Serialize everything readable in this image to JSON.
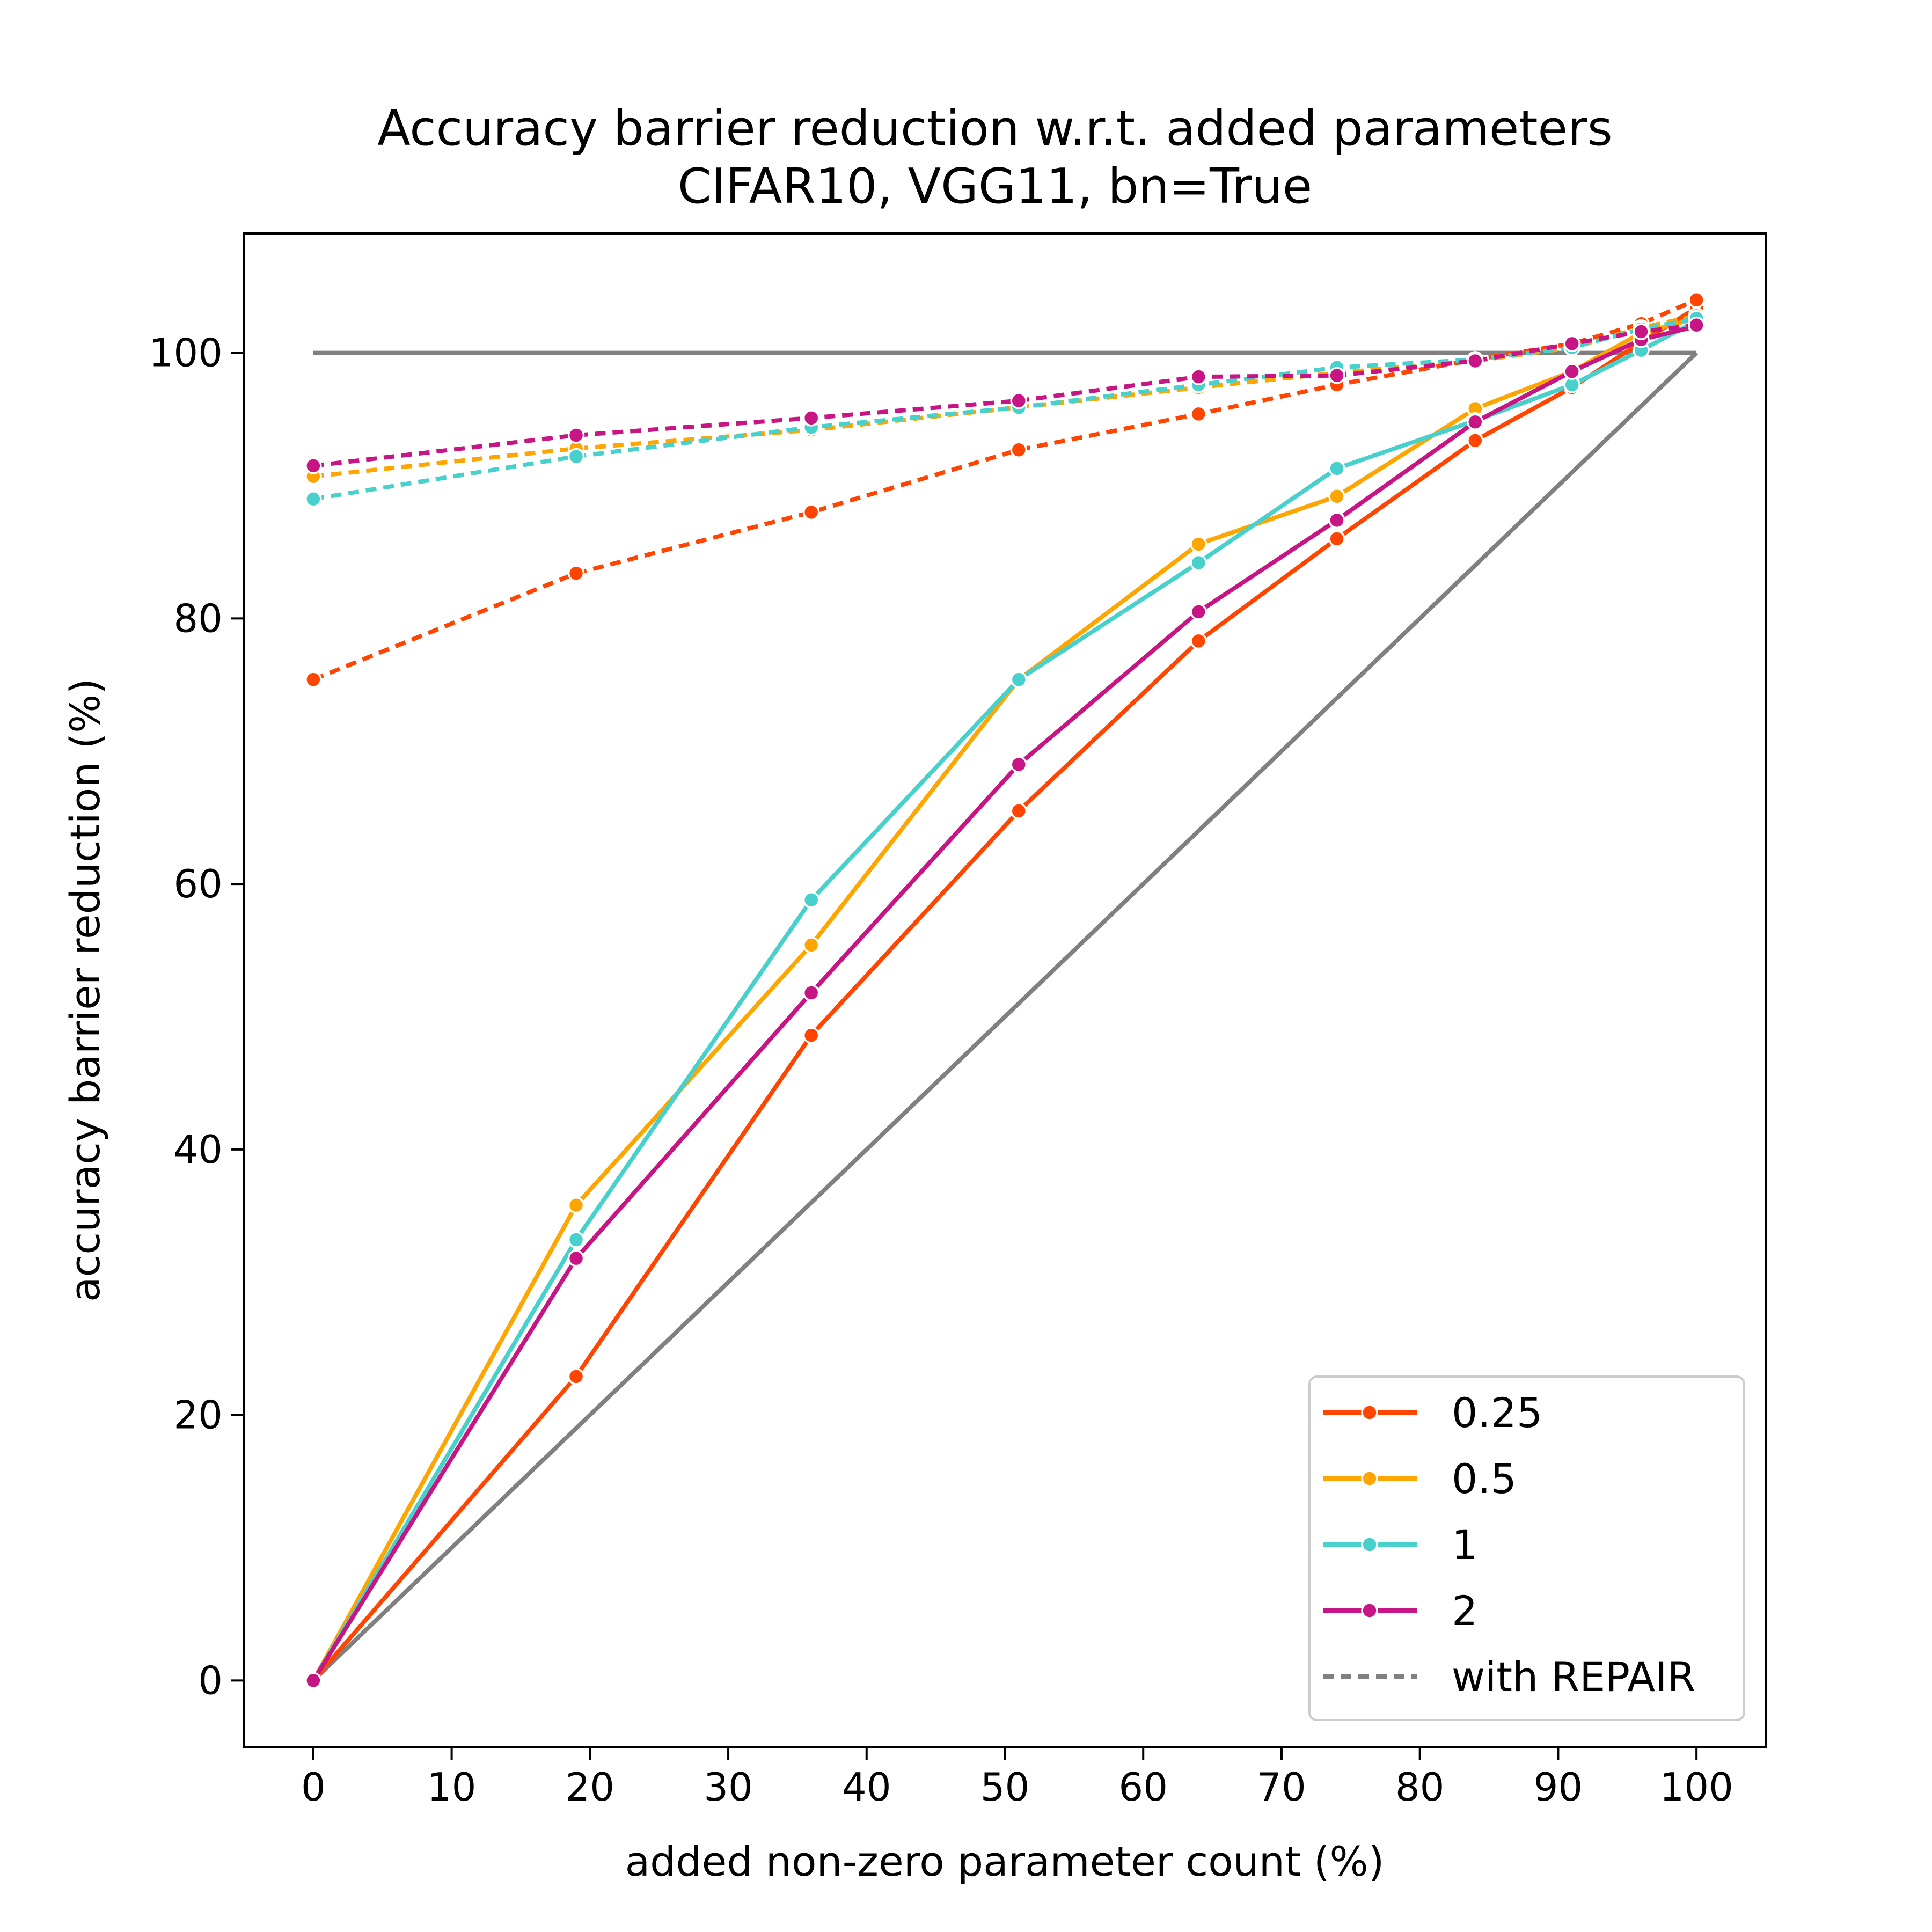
{
  "chart_data": {
    "type": "line",
    "title": "Accuracy barrier reduction w.r.t. added parameters",
    "subtitle": "CIFAR10, VGG11, bn=True",
    "xlabel": "added non-zero parameter count (%)",
    "ylabel": "accuracy barrier reduction (%)",
    "xlim": [
      -5,
      105
    ],
    "ylim": [
      -5,
      109
    ],
    "x_ticks": [
      0,
      10,
      20,
      30,
      40,
      50,
      60,
      70,
      80,
      90,
      100
    ],
    "y_ticks": [
      0,
      20,
      40,
      60,
      80,
      100
    ],
    "grid": false,
    "legend_position": "lower-right",
    "x": [
      0,
      19,
      36,
      51,
      64,
      74,
      84,
      91,
      96,
      100
    ],
    "series": [
      {
        "name": "0.25",
        "color": "#ff4500",
        "style": "solid",
        "values": [
          0,
          22.9,
          48.6,
          65.5,
          78.3,
          86.0,
          93.4,
          97.4,
          100.8,
          103.4
        ]
      },
      {
        "name": "0.5",
        "color": "#ffa500",
        "style": "solid",
        "values": [
          0,
          35.8,
          55.4,
          75.4,
          85.6,
          89.2,
          95.8,
          98.6,
          101.5,
          102.6
        ]
      },
      {
        "name": "1",
        "color": "#48d1cc",
        "style": "solid",
        "values": [
          0,
          33.2,
          58.8,
          75.4,
          84.2,
          91.3,
          94.9,
          97.6,
          100.2,
          102.4
        ]
      },
      {
        "name": "2",
        "color": "#c71585",
        "style": "solid",
        "values": [
          0,
          31.8,
          51.8,
          69.0,
          80.5,
          87.4,
          94.8,
          98.6,
          101.0,
          102.0
        ]
      },
      {
        "name": "0.25",
        "color": "#ff4500",
        "style": "dotted",
        "values": [
          75.4,
          83.4,
          88.0,
          92.7,
          95.4,
          97.6,
          99.5,
          100.7,
          102.2,
          104.0
        ]
      },
      {
        "name": "0.5",
        "color": "#ffa500",
        "style": "dotted",
        "values": [
          90.7,
          92.8,
          94.2,
          95.9,
          97.4,
          98.5,
          99.4,
          100.4,
          101.9,
          102.8
        ]
      },
      {
        "name": "1",
        "color": "#48d1cc",
        "style": "dotted",
        "values": [
          89.0,
          92.2,
          94.4,
          95.9,
          97.6,
          98.9,
          99.5,
          100.4,
          101.8,
          102.6
        ]
      },
      {
        "name": "2",
        "color": "#c71585",
        "style": "dotted",
        "values": [
          91.5,
          93.8,
          95.1,
          96.4,
          98.2,
          98.3,
          99.4,
          100.7,
          101.6,
          102.1
        ]
      }
    ],
    "reference_lines": [
      {
        "color": "#808080",
        "x": [
          0,
          100
        ],
        "values": [
          100,
          100
        ]
      },
      {
        "color": "#808080",
        "x": [
          0,
          100
        ],
        "values": [
          0,
          100
        ]
      }
    ],
    "legend": [
      {
        "label": "0.25",
        "color": "#ff4500",
        "style": "solid-marker"
      },
      {
        "label": "0.5",
        "color": "#ffa500",
        "style": "solid-marker"
      },
      {
        "label": "1",
        "color": "#48d1cc",
        "style": "solid-marker"
      },
      {
        "label": "2",
        "color": "#c71585",
        "style": "solid-marker"
      },
      {
        "label": "with REPAIR",
        "color": "#808080",
        "style": "dotted"
      }
    ]
  }
}
